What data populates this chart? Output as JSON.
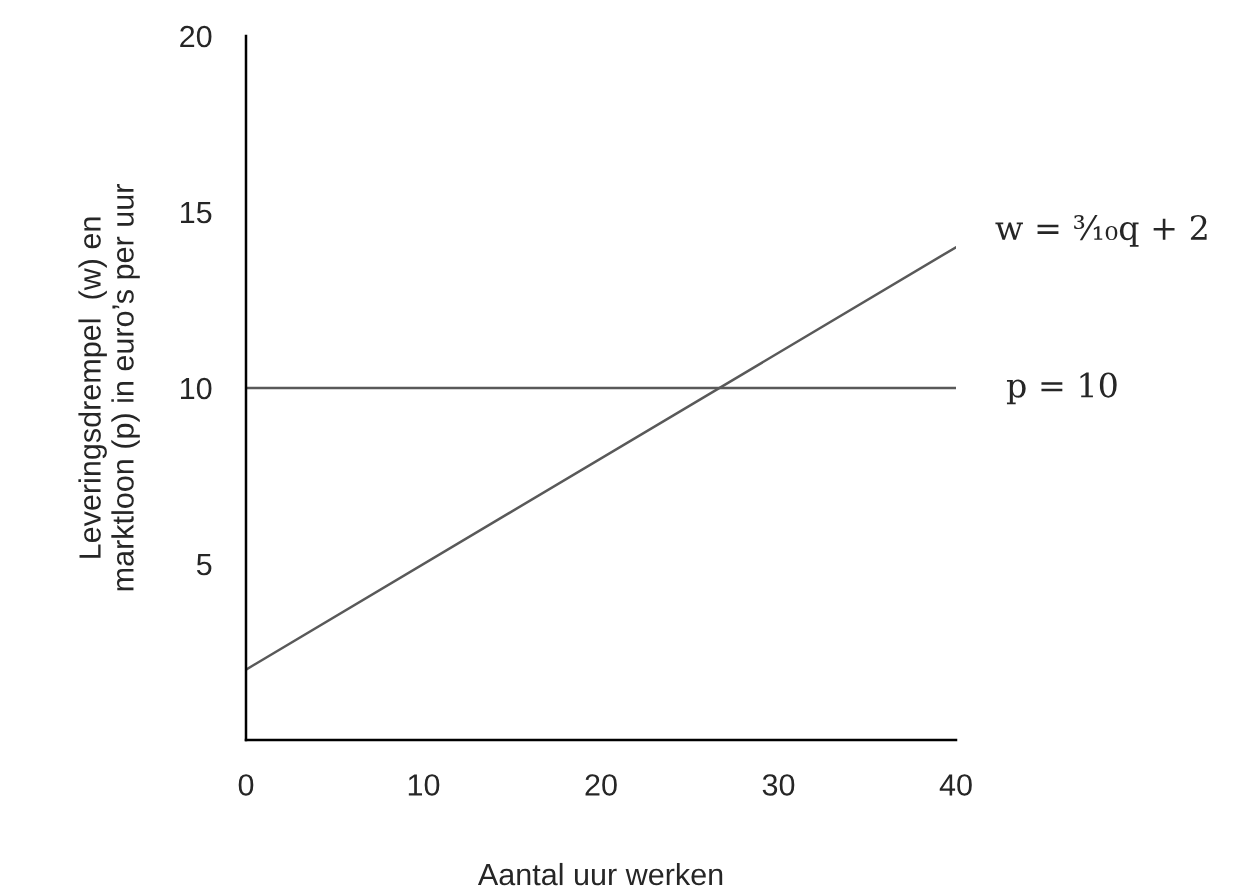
{
  "chart_data": {
    "type": "line",
    "xlabel": "Aantal uur werken",
    "ylabel": "Leveringsdrempel  (w) en\nmarktloon (p) in euro’s per uur",
    "series": [
      {
        "name": "w = ³⁄₁₀q + 2",
        "color": "#595959",
        "x": [
          0,
          40
        ],
        "values": [
          2,
          14
        ]
      }
    ],
    "ref_lines": [
      {
        "axis": "y",
        "value": 10,
        "label": "p = 10",
        "color": "#595959",
        "line_style": "solid"
      }
    ],
    "xlim": [
      0,
      40
    ],
    "xticks": [
      0,
      10,
      20,
      30,
      40
    ],
    "ylim": [
      0,
      20
    ],
    "yticks": [
      5,
      10,
      15,
      20
    ],
    "grid": false,
    "legend": false,
    "marker": "none",
    "line_style": "solid"
  }
}
